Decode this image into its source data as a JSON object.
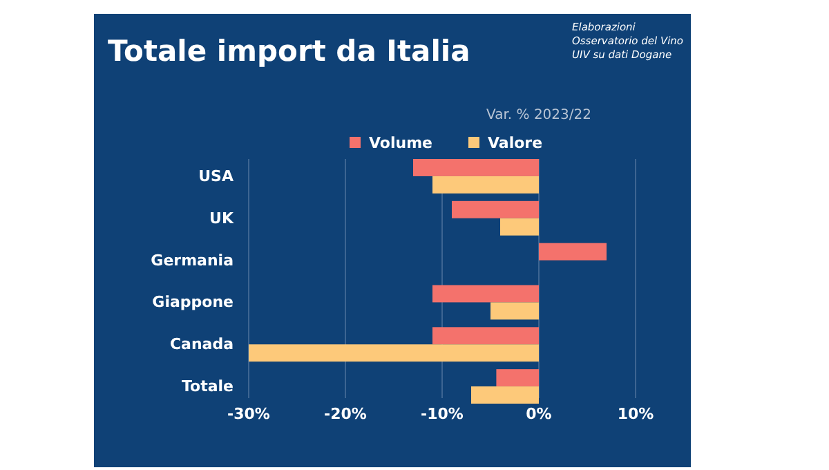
{
  "chart_data": {
    "type": "bar",
    "orientation": "horizontal",
    "title": "Totale import da Italia",
    "subtitle": "Var. % 2023/22",
    "annotations": [
      "Elaborazioni Osservatorio del Vino UIV su dati Dogane"
    ],
    "categories": [
      "USA",
      "UK",
      "Germania",
      "Giappone",
      "Canada",
      "Totale"
    ],
    "series": [
      {
        "name": "Volume",
        "color": "#f4726c",
        "values": [
          -13,
          -9,
          7,
          -11,
          -11,
          -4.4
        ]
      },
      {
        "name": "Valore",
        "color": "#fdc97a",
        "values": [
          -11,
          -4,
          0,
          -5,
          -30,
          -7
        ]
      }
    ],
    "xlim": [
      -30,
      10
    ],
    "xticks": [
      {
        "value": -30,
        "label": "-30%"
      },
      {
        "value": -20,
        "label": "-20%"
      },
      {
        "value": -10,
        "label": "-10%"
      },
      {
        "value": 0,
        "label": "0%"
      },
      {
        "value": 10,
        "label": "10%"
      }
    ],
    "grid": "x",
    "legend": "top"
  }
}
